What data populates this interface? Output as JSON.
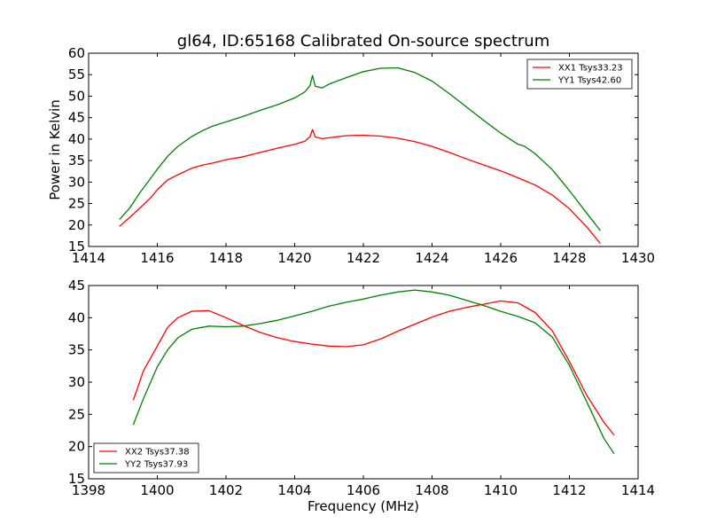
{
  "figure": {
    "title": "gl64, ID:65168 Calibrated On-source spectrum",
    "xlabel": "Frequency (MHz)",
    "ylabel": "Power in Kelvin"
  },
  "colors": {
    "XX": "#ff0000",
    "YY": "#008000",
    "axes": "#000000",
    "background": "#ffffff"
  },
  "chart_data": [
    {
      "type": "line",
      "title": "gl64, ID:65168 Calibrated On-source spectrum",
      "xlabel": "",
      "ylabel": "Power in Kelvin",
      "xlim": [
        1414,
        1430
      ],
      "ylim": [
        15,
        60
      ],
      "xticks": [
        1414,
        1416,
        1418,
        1420,
        1422,
        1424,
        1426,
        1428,
        1430
      ],
      "yticks": [
        15,
        20,
        25,
        30,
        35,
        40,
        45,
        50,
        55,
        60
      ],
      "grid": false,
      "legend": "top-right",
      "series": [
        {
          "name": "XX1 Tsys33.23",
          "color": "#ff0000",
          "x": [
            1414.9,
            1415.2,
            1415.5,
            1415.8,
            1416.0,
            1416.3,
            1416.6,
            1417.0,
            1417.3,
            1417.6,
            1418.0,
            1418.5,
            1419.0,
            1419.5,
            1420.0,
            1420.3,
            1420.45,
            1420.52,
            1420.6,
            1420.8,
            1421.0,
            1421.5,
            1422.0,
            1422.5,
            1423.0,
            1423.5,
            1424.0,
            1424.5,
            1425.0,
            1425.5,
            1426.0,
            1426.5,
            1427.0,
            1427.5,
            1428.0,
            1428.5,
            1428.9
          ],
          "values": [
            19.7,
            21.8,
            24.0,
            26.3,
            28.2,
            30.5,
            31.7,
            33.2,
            33.9,
            34.4,
            35.2,
            35.9,
            36.9,
            37.9,
            38.8,
            39.5,
            40.6,
            42.2,
            40.5,
            40.1,
            40.3,
            40.8,
            40.9,
            40.7,
            40.2,
            39.4,
            38.3,
            36.9,
            35.4,
            34.0,
            32.6,
            31.0,
            29.3,
            27.0,
            23.8,
            19.6,
            15.7
          ]
        },
        {
          "name": "YY1 Tsys42.60",
          "color": "#008000",
          "x": [
            1414.9,
            1415.2,
            1415.5,
            1415.8,
            1416.0,
            1416.3,
            1416.6,
            1417.0,
            1417.3,
            1417.6,
            1418.0,
            1418.5,
            1419.0,
            1419.5,
            1420.0,
            1420.3,
            1420.45,
            1420.52,
            1420.6,
            1420.8,
            1421.0,
            1421.5,
            1422.0,
            1422.5,
            1423.0,
            1423.5,
            1424.0,
            1424.5,
            1425.0,
            1425.5,
            1426.0,
            1426.5,
            1426.6,
            1426.7,
            1427.0,
            1427.5,
            1428.0,
            1428.5,
            1428.9
          ],
          "values": [
            21.3,
            24.0,
            27.6,
            30.8,
            33.0,
            36.0,
            38.3,
            40.6,
            41.9,
            43.0,
            44.0,
            45.3,
            46.7,
            48.0,
            49.6,
            51.0,
            52.5,
            54.8,
            52.3,
            51.9,
            52.8,
            54.3,
            55.7,
            56.5,
            56.6,
            55.5,
            53.5,
            50.6,
            47.5,
            44.4,
            41.4,
            38.8,
            38.6,
            38.3,
            36.6,
            32.9,
            28.0,
            22.8,
            18.7
          ]
        }
      ]
    },
    {
      "type": "line",
      "title": "",
      "xlabel": "Frequency (MHz)",
      "ylabel": "",
      "xlim": [
        1398,
        1414
      ],
      "ylim": [
        15,
        45
      ],
      "xticks": [
        1398,
        1400,
        1402,
        1404,
        1406,
        1408,
        1410,
        1412,
        1414
      ],
      "yticks": [
        15,
        20,
        25,
        30,
        35,
        40,
        45
      ],
      "grid": false,
      "legend": "bottom-left",
      "series": [
        {
          "name": "XX2 Tsys37.38",
          "color": "#ff0000",
          "x": [
            1399.3,
            1399.6,
            1400.0,
            1400.3,
            1400.6,
            1401.0,
            1401.5,
            1402.0,
            1402.5,
            1403.0,
            1403.5,
            1404.0,
            1404.5,
            1405.0,
            1405.5,
            1406.0,
            1406.5,
            1407.0,
            1407.5,
            1408.0,
            1408.5,
            1409.0,
            1409.5,
            1410.0,
            1410.5,
            1411.0,
            1411.5,
            1412.0,
            1412.5,
            1413.0,
            1413.3
          ],
          "values": [
            27.2,
            31.8,
            35.6,
            38.5,
            40.0,
            41.0,
            41.1,
            40.0,
            38.8,
            37.7,
            36.9,
            36.3,
            35.9,
            35.6,
            35.5,
            35.8,
            36.7,
            37.9,
            39.0,
            40.1,
            41.0,
            41.6,
            42.1,
            42.6,
            42.3,
            40.8,
            38.0,
            33.2,
            28.0,
            23.8,
            21.8
          ]
        },
        {
          "name": "YY2 Tsys37.93",
          "color": "#008000",
          "x": [
            1399.3,
            1399.6,
            1400.0,
            1400.3,
            1400.6,
            1401.0,
            1401.5,
            1402.0,
            1402.5,
            1403.0,
            1403.5,
            1404.0,
            1404.5,
            1405.0,
            1405.5,
            1406.0,
            1406.5,
            1407.0,
            1407.5,
            1408.0,
            1408.5,
            1409.0,
            1409.5,
            1410.0,
            1410.5,
            1411.0,
            1411.5,
            1412.0,
            1412.5,
            1413.0,
            1413.3
          ],
          "values": [
            23.4,
            27.5,
            32.4,
            35.0,
            36.9,
            38.2,
            38.7,
            38.6,
            38.7,
            39.1,
            39.6,
            40.3,
            41.0,
            41.8,
            42.4,
            42.9,
            43.5,
            44.0,
            44.3,
            44.0,
            43.5,
            42.7,
            41.9,
            41.0,
            40.2,
            39.2,
            37.0,
            32.6,
            27.0,
            21.3,
            18.9
          ]
        }
      ]
    }
  ]
}
